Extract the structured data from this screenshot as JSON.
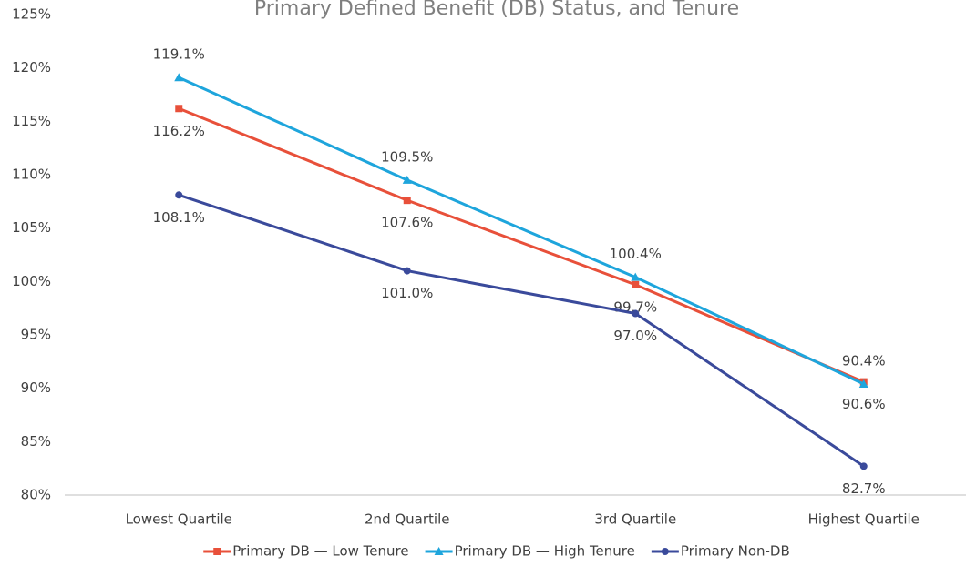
{
  "chart_data": {
    "type": "line",
    "title": "Primary Defined Benefit (DB) Status, and Tenure",
    "categories": [
      "Lowest Quartile",
      "2nd Quartile",
      "3rd Quartile",
      "Highest Quartile"
    ],
    "series": [
      {
        "name": "Primary DB — Low Tenure",
        "color": "#e8503a",
        "marker": "square",
        "label_position": "below",
        "values": [
          116.2,
          107.6,
          99.7,
          90.6
        ],
        "value_labels": [
          "116.2%",
          "107.6%",
          "99.7%",
          "90.6%"
        ]
      },
      {
        "name": "Primary DB — High Tenure",
        "color": "#1ea5dc",
        "marker": "triangle",
        "label_position": "above",
        "values": [
          119.1,
          109.5,
          100.4,
          90.4
        ],
        "value_labels": [
          "119.1%",
          "109.5%",
          "100.4%",
          "90.4%"
        ]
      },
      {
        "name": "Primary Non-DB",
        "color": "#3a4a9b",
        "marker": "circle",
        "label_position": "below",
        "values": [
          108.1,
          101.0,
          97.0,
          82.7
        ],
        "value_labels": [
          "108.1%",
          "101.0%",
          "97.0%",
          "82.7%"
        ]
      }
    ],
    "ylim": [
      80,
      125
    ],
    "yticks": [
      {
        "value": 80,
        "label": "80%"
      },
      {
        "value": 85,
        "label": "85%"
      },
      {
        "value": 90,
        "label": "90%"
      },
      {
        "value": 95,
        "label": "95%"
      },
      {
        "value": 100,
        "label": "100%"
      },
      {
        "value": 105,
        "label": "105%"
      },
      {
        "value": 110,
        "label": "110%"
      },
      {
        "value": 115,
        "label": "115%"
      },
      {
        "value": 120,
        "label": "120%"
      },
      {
        "value": 125,
        "label": "125%"
      }
    ],
    "grid": false,
    "legend": "bottom"
  }
}
